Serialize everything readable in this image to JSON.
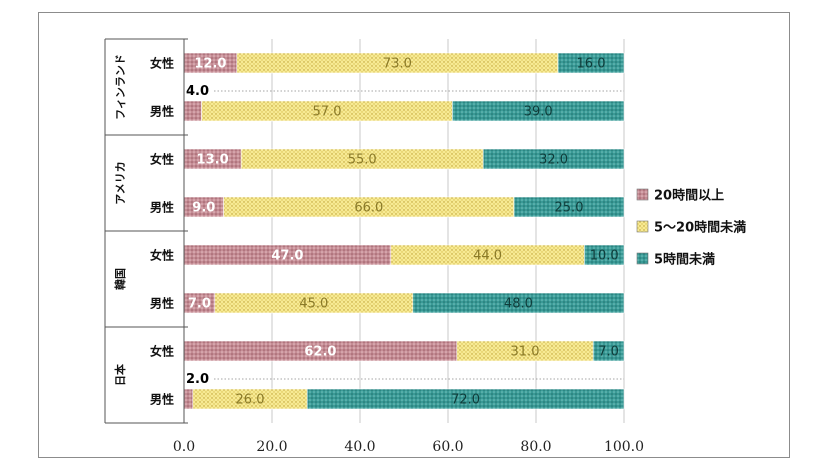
{
  "chart_data": {
    "type": "bar",
    "orientation": "horizontal",
    "stacked": true,
    "title": "",
    "xlabel": "",
    "ylabel": "",
    "xlim": [
      0,
      100
    ],
    "xticks": [
      "0.0",
      "20.0",
      "40.0",
      "60.0",
      "80.0",
      "100.0"
    ],
    "grid": true,
    "legend_position": "right",
    "groups": [
      {
        "name": "フィンランド",
        "categories": [
          "女性",
          "男性"
        ]
      },
      {
        "name": "アメリカ",
        "categories": [
          "女性",
          "男性"
        ]
      },
      {
        "name": "韓国",
        "categories": [
          "女性",
          "男性"
        ]
      },
      {
        "name": "日本",
        "categories": [
          "女性",
          "男性"
        ]
      }
    ],
    "series": [
      {
        "name": "20時間以上",
        "color": "#c08890",
        "values": [
          12.0,
          4.0,
          13.0,
          9.0,
          47.0,
          7.0,
          62.0,
          2.0
        ],
        "labels": [
          "12.0",
          "4.0",
          "13.0",
          "9.0",
          "47.0",
          "7.0",
          "62.0",
          "2.0"
        ]
      },
      {
        "name": "5～20時間未満",
        "color": "#f5e68a",
        "values": [
          73.0,
          57.0,
          55.0,
          66.0,
          44.0,
          45.0,
          31.0,
          26.0
        ],
        "labels": [
          "73.0",
          "57.0",
          "55.0",
          "66.0",
          "44.0",
          "45.0",
          "31.0",
          "26.0"
        ]
      },
      {
        "name": "5時間未満",
        "color": "#3c9a96",
        "values": [
          16.0,
          39.0,
          32.0,
          25.0,
          10.0,
          48.0,
          7.0,
          72.0
        ],
        "labels": [
          "16.0",
          "39.0",
          "32.0",
          "25.0",
          "10.0",
          "48.0",
          "7.0",
          "72.0"
        ]
      }
    ]
  }
}
